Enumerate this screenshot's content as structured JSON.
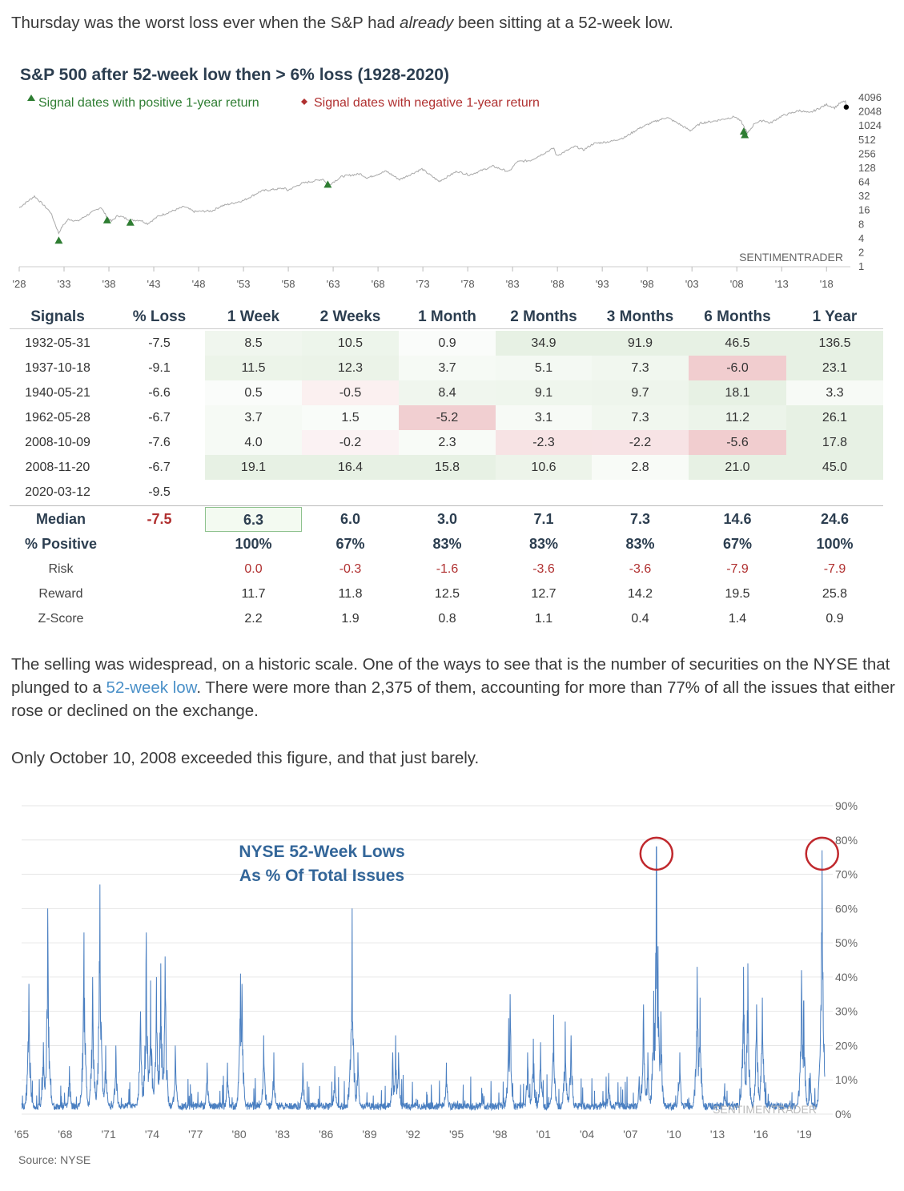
{
  "intro": {
    "before": "Thursday was the worst loss ever when the S&P had ",
    "emph": "already",
    "after": " been sitting at a 52-week low."
  },
  "top_chart": {
    "title": "S&P 500 after 52-week low then > 6% loss (1928-2020)",
    "legend_positive": "Signal dates with positive 1-year return",
    "legend_negative": "Signal dates with negative 1-year return",
    "watermark": "SENTIMENTRADER",
    "positive_color": "#2e7d32",
    "negative_color": "#b03030"
  },
  "table": {
    "headers": [
      "Signals",
      "% Loss",
      "1 Week",
      "2 Weeks",
      "1 Month",
      "2 Months",
      "3 Months",
      "6 Months",
      "1 Year"
    ],
    "rows": [
      {
        "date": "1932-05-31",
        "loss": "-7.5",
        "vals": [
          "8.5",
          "10.5",
          "0.9",
          "34.9",
          "91.9",
          "46.5",
          "136.5"
        ]
      },
      {
        "date": "1937-10-18",
        "loss": "-9.1",
        "vals": [
          "11.5",
          "12.3",
          "3.7",
          "5.1",
          "7.3",
          "-6.0",
          "23.1"
        ]
      },
      {
        "date": "1940-05-21",
        "loss": "-6.6",
        "vals": [
          "0.5",
          "-0.5",
          "8.4",
          "9.1",
          "9.7",
          "18.1",
          "3.3"
        ]
      },
      {
        "date": "1962-05-28",
        "loss": "-6.7",
        "vals": [
          "3.7",
          "1.5",
          "-5.2",
          "3.1",
          "7.3",
          "11.2",
          "26.1"
        ]
      },
      {
        "date": "2008-10-09",
        "loss": "-7.6",
        "vals": [
          "4.0",
          "-0.2",
          "2.3",
          "-2.3",
          "-2.2",
          "-5.6",
          "17.8"
        ]
      },
      {
        "date": "2008-11-20",
        "loss": "-6.7",
        "vals": [
          "19.1",
          "16.4",
          "15.8",
          "10.6",
          "2.8",
          "21.0",
          "45.0"
        ]
      },
      {
        "date": "2020-03-12",
        "loss": "-9.5",
        "vals": [
          "",
          "",
          "",
          "",
          "",
          "",
          ""
        ]
      }
    ],
    "summary": [
      {
        "label": "Median",
        "loss": "-7.5",
        "vals": [
          "6.3",
          "6.0",
          "3.0",
          "7.1",
          "7.3",
          "14.6",
          "24.6"
        ],
        "style": "bold"
      },
      {
        "label": "% Positive",
        "loss": "",
        "vals": [
          "100%",
          "67%",
          "83%",
          "83%",
          "83%",
          "67%",
          "100%"
        ],
        "style": "bold"
      },
      {
        "label": "Risk",
        "loss": "",
        "vals": [
          "0.0",
          "-0.3",
          "-1.6",
          "-3.6",
          "-3.6",
          "-7.9",
          "-7.9"
        ],
        "style": "risk"
      },
      {
        "label": "Reward",
        "loss": "",
        "vals": [
          "11.7",
          "11.8",
          "12.5",
          "12.7",
          "14.2",
          "19.5",
          "25.8"
        ],
        "style": "plain"
      },
      {
        "label": "Z-Score",
        "loss": "",
        "vals": [
          "2.2",
          "1.9",
          "0.8",
          "1.1",
          "0.4",
          "1.4",
          "0.9"
        ],
        "style": "plain"
      }
    ]
  },
  "para2": {
    "before": "The selling was widespread, on a historic scale. One of the ways to see that is the number of securities on the NYSE that plunged to a ",
    "link": "52-week low",
    "after": ". There were more than 2,375 of them, accounting for more than 77% of all the issues that either rose or declined on the exchange."
  },
  "para3": "Only October 10, 2008 exceeded this figure, and that just barely.",
  "bottom_chart": {
    "title_line1": "NYSE 52-Week Lows",
    "title_line2": "As % Of Total Issues",
    "watermark": "SENTIMENTRADER",
    "source": "Source: NYSE",
    "line_color": "#4a7fc1",
    "circle_color": "#c0282d"
  },
  "chart_data": [
    {
      "type": "line",
      "title": "S&P 500 after 52-week low then > 6% loss (1928-2020)",
      "y_scale": "log2",
      "y_ticks": [
        "4096",
        "2048",
        "1024",
        "512",
        "256",
        "128",
        "64",
        "32",
        "16",
        "8",
        "4",
        "2",
        "1"
      ],
      "x_ticks": [
        "'28",
        "'33",
        "'38",
        "'43",
        "'48",
        "'53",
        "'58",
        "'63",
        "'68",
        "'73",
        "'78",
        "'83",
        "'88",
        "'93",
        "'98",
        "'03",
        "'08",
        "'13",
        "'18"
      ],
      "x_range": [
        1928,
        2020.3
      ],
      "series": [
        {
          "points": [
            [
              1928,
              17.5
            ],
            [
              1929.7,
              31
            ],
            [
              1930.5,
              22
            ],
            [
              1931.5,
              14
            ],
            [
              1932.4,
              5
            ],
            [
              1932.8,
              7
            ],
            [
              1933.5,
              10
            ],
            [
              1934.5,
              9
            ],
            [
              1935.5,
              12
            ],
            [
              1937.1,
              18
            ],
            [
              1937.8,
              11
            ],
            [
              1938.3,
              9
            ],
            [
              1939,
              12
            ],
            [
              1940.4,
              9.5
            ],
            [
              1941.5,
              9.5
            ],
            [
              1942.3,
              8
            ],
            [
              1943.5,
              11.5
            ],
            [
              1946.4,
              18.5
            ],
            [
              1947.5,
              14.5
            ],
            [
              1949.5,
              15
            ],
            [
              1950.5,
              19
            ],
            [
              1953,
              25
            ],
            [
              1955,
              40
            ],
            [
              1957.6,
              46
            ],
            [
              1957.9,
              41
            ],
            [
              1959.5,
              58
            ],
            [
              1961.9,
              72
            ],
            [
              1962.4,
              52
            ],
            [
              1964,
              82
            ],
            [
              1966,
              93
            ],
            [
              1966.8,
              76
            ],
            [
              1968.9,
              106
            ],
            [
              1970.4,
              70
            ],
            [
              1972.9,
              118
            ],
            [
              1974.8,
              64
            ],
            [
              1976.8,
              105
            ],
            [
              1978.2,
              88
            ],
            [
              1980.8,
              135
            ],
            [
              1982.6,
              103
            ],
            [
              1983.5,
              168
            ],
            [
              1985,
              180
            ],
            [
              1987.6,
              330
            ],
            [
              1987.9,
              225
            ],
            [
              1990,
              360
            ],
            [
              1990.9,
              300
            ],
            [
              1992,
              410
            ],
            [
              1994,
              460
            ],
            [
              1995.5,
              560
            ],
            [
              1997,
              850
            ],
            [
              1998.5,
              1150
            ],
            [
              2000.2,
              1500
            ],
            [
              2001.5,
              1100
            ],
            [
              2002.8,
              780
            ],
            [
              2004,
              1130
            ],
            [
              2005.5,
              1250
            ],
            [
              2007.8,
              1550
            ],
            [
              2008.5,
              1200
            ],
            [
              2009.2,
              680
            ],
            [
              2010,
              1130
            ],
            [
              2011,
              1300
            ],
            [
              2011.7,
              1120
            ],
            [
              2013,
              1600
            ],
            [
              2015,
              2100
            ],
            [
              2016.1,
              1850
            ],
            [
              2018,
              2800
            ],
            [
              2018.9,
              2400
            ],
            [
              2019.5,
              3000
            ],
            [
              2020.1,
              3350
            ],
            [
              2020.2,
              2480
            ]
          ]
        }
      ],
      "positive_signals": [
        [
          1932.41,
          3.5
        ],
        [
          1937.8,
          9.5
        ],
        [
          1940.39,
          8.5
        ],
        [
          1962.4,
          55
        ],
        [
          2008.77,
          750
        ],
        [
          2008.89,
          630
        ]
      ],
      "current_point": [
        2020.2,
        2480
      ]
    },
    {
      "type": "line",
      "title": "NYSE 52-Week Lows As % Of Total Issues",
      "y_ticks": [
        "0%",
        "10%",
        "20%",
        "30%",
        "40%",
        "50%",
        "60%",
        "70%",
        "80%",
        "90%"
      ],
      "y_range": [
        0,
        90
      ],
      "x_ticks": [
        "'65",
        "'68",
        "'71",
        "'74",
        "'77",
        "'80",
        "'83",
        "'86",
        "'89",
        "'92",
        "'95",
        "'98",
        "'01",
        "'04",
        "'07",
        "'10",
        "'13",
        "'16",
        "'19"
      ],
      "x_range": [
        1965,
        2020.4
      ],
      "spikes": [
        [
          1965.5,
          38
        ],
        [
          1966.5,
          21
        ],
        [
          1966.8,
          60
        ],
        [
          1968.3,
          14
        ],
        [
          1969.3,
          53
        ],
        [
          1969.9,
          40
        ],
        [
          1970.4,
          67
        ],
        [
          1970.8,
          20
        ],
        [
          1971.5,
          20
        ],
        [
          1973.2,
          30
        ],
        [
          1973.6,
          53
        ],
        [
          1973.9,
          39
        ],
        [
          1974.3,
          40
        ],
        [
          1974.6,
          44
        ],
        [
          1974.9,
          46
        ],
        [
          1975.6,
          20
        ],
        [
          1977.8,
          15
        ],
        [
          1979.2,
          15
        ],
        [
          1980.1,
          41
        ],
        [
          1980.2,
          38
        ],
        [
          1981.7,
          23
        ],
        [
          1982.4,
          18
        ],
        [
          1984.4,
          15
        ],
        [
          1986.6,
          14
        ],
        [
          1987.8,
          60
        ],
        [
          1988.2,
          18
        ],
        [
          1990.6,
          18
        ],
        [
          1990.8,
          23
        ],
        [
          1991,
          18
        ],
        [
          1994.3,
          15
        ],
        [
          1996.8,
          6
        ],
        [
          1998.6,
          28
        ],
        [
          1998.7,
          35
        ],
        [
          1999.9,
          18
        ],
        [
          2000.3,
          22
        ],
        [
          2000.8,
          21
        ],
        [
          2001.7,
          29
        ],
        [
          2002.5,
          27
        ],
        [
          2002.9,
          23
        ],
        [
          2005.5,
          12
        ],
        [
          2007.6,
          11
        ],
        [
          2007.9,
          32
        ],
        [
          2008.2,
          18
        ],
        [
          2008.6,
          36
        ],
        [
          2008.79,
          78
        ],
        [
          2008.9,
          49
        ],
        [
          2009.1,
          30
        ],
        [
          2010.4,
          18
        ],
        [
          2011.6,
          43
        ],
        [
          2011.8,
          34
        ],
        [
          2013.5,
          9
        ],
        [
          2014.8,
          43
        ],
        [
          2015.1,
          44
        ],
        [
          2015.7,
          32
        ],
        [
          2016.1,
          34
        ],
        [
          2018.8,
          42
        ],
        [
          2018.95,
          33
        ],
        [
          2019.4,
          12
        ],
        [
          2020.18,
          53
        ],
        [
          2020.22,
          77
        ]
      ]
    }
  ]
}
